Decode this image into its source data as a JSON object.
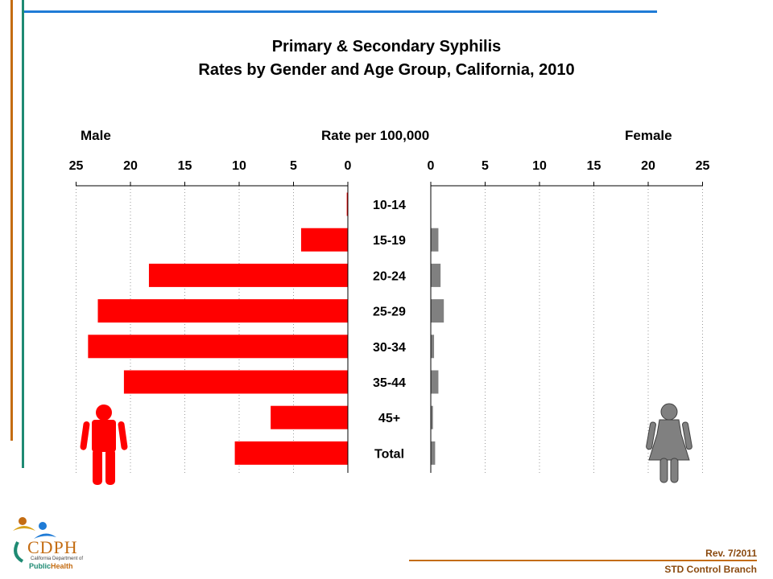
{
  "title_line1": "Primary & Secondary Syphilis",
  "title_line2": "Rates by Gender and Age Group, California, 2010",
  "header_male": "Male",
  "header_rate": "Rate per 100,000",
  "header_female": "Female",
  "footer_rev": "Rev. 7/2011",
  "footer_branch": "STD Control Branch",
  "logo": {
    "abbrev": "CDPH",
    "line1": "California Department of",
    "line2a": "Public",
    "line2b": "Health"
  },
  "colors": {
    "male_bar": "#ff0000",
    "female_bar": "#808080",
    "accent_blue": "#1f7bd6",
    "accent_orange": "#c46c12",
    "accent_teal": "#1e8a73"
  },
  "chart_data": {
    "type": "bar",
    "orientation": "horizontal",
    "layout": "population-pyramid",
    "categories": [
      "10-14",
      "15-19",
      "20-24",
      "25-29",
      "30-34",
      "35-44",
      "45+",
      "Total"
    ],
    "series": [
      {
        "name": "Male",
        "values": [
          0.1,
          4.3,
          18.3,
          23.0,
          23.9,
          20.6,
          7.1,
          10.4
        ]
      },
      {
        "name": "Female",
        "values": [
          0.0,
          0.7,
          0.9,
          1.2,
          0.3,
          0.7,
          0.2,
          0.4
        ]
      }
    ],
    "xlim": [
      0,
      25
    ],
    "ticks": [
      0,
      5,
      10,
      15,
      20,
      25
    ],
    "grid": true
  }
}
